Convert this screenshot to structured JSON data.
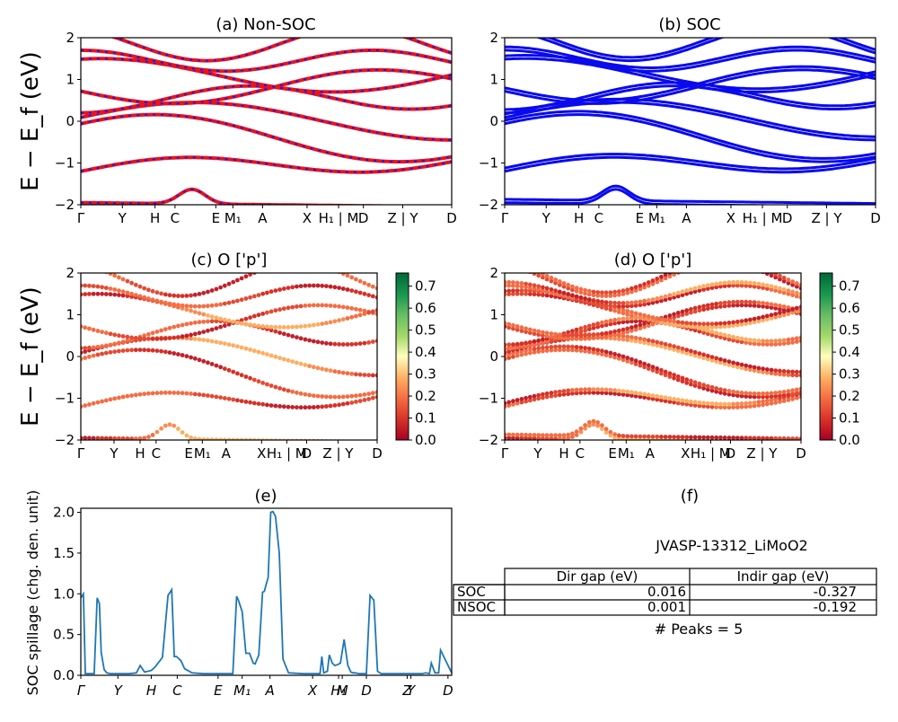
{
  "figure": {
    "ylabel_bands": "E − E_f (eV)",
    "colors": {
      "nonsoc_band": "#e8141c",
      "nonsoc_dash": "#1a1aee",
      "soc_band": "#0a0aee",
      "spillage_line": "#1f77b4"
    },
    "colormap": "RdYlGn"
  },
  "chart_data": [
    {
      "id": "a",
      "type": "line",
      "title": "(a) Non-SOC",
      "ylim": [
        -2,
        2
      ],
      "yticks": [
        "−2",
        "−1",
        "0",
        "1",
        "2"
      ],
      "kpath_labels": [
        "Γ",
        "Y",
        "H",
        "C",
        "E",
        "M₁",
        "A",
        "X",
        "H₁ | M",
        "D",
        "Z | Y",
        "D"
      ],
      "kpath_positions": [
        0,
        0.112,
        0.2,
        0.254,
        0.364,
        0.41,
        0.49,
        0.61,
        0.695,
        0.762,
        0.868,
        1.0
      ],
      "breaks": [
        0.683,
        0.868
      ]
    },
    {
      "id": "b",
      "type": "line",
      "title": "(b) SOC",
      "ylim": [
        -2,
        2
      ],
      "yticks": [
        "−2",
        "−1",
        "0",
        "1",
        "2"
      ],
      "kpath_labels": [
        "Γ",
        "Y",
        "H",
        "C",
        "E",
        "M₁",
        "A",
        "X",
        "H₁ | M",
        "D",
        "Z | Y",
        "D"
      ],
      "kpath_positions": [
        0,
        0.112,
        0.2,
        0.254,
        0.364,
        0.41,
        0.49,
        0.61,
        0.695,
        0.762,
        0.868,
        1.0
      ],
      "breaks": [
        0.683,
        0.868
      ]
    },
    {
      "id": "c",
      "type": "scatter",
      "title": "(c)  O ['p']",
      "ylim": [
        -2,
        2
      ],
      "yticks": [
        "−2",
        "−1",
        "0",
        "1",
        "2"
      ],
      "kpath_labels": [
        "Γ",
        "Y",
        "H",
        "C",
        "E",
        "M₁",
        "A",
        "X",
        "H₁ | M",
        "D",
        "Z | Y",
        "D"
      ],
      "colorbar": {
        "min": 0.0,
        "max": 0.76,
        "ticks": [
          "0.0",
          "0.1",
          "0.2",
          "0.3",
          "0.4",
          "0.5",
          "0.6",
          "0.7"
        ]
      }
    },
    {
      "id": "d",
      "type": "scatter",
      "title": "(d) O ['p']",
      "ylim": [
        -2,
        2
      ],
      "yticks": [
        "−2",
        "−1",
        "0",
        "1",
        "2"
      ],
      "kpath_labels": [
        "Γ",
        "Y",
        "H",
        "C",
        "E",
        "M₁",
        "A",
        "X",
        "H₁ | M",
        "D",
        "Z | Y",
        "D"
      ],
      "colorbar": {
        "min": 0.0,
        "max": 0.76,
        "ticks": [
          "0.0",
          "0.1",
          "0.2",
          "0.3",
          "0.4",
          "0.5",
          "0.6",
          "0.7"
        ]
      }
    },
    {
      "id": "e",
      "type": "line",
      "title": "(e)",
      "ylabel": "SOC spillage (chg. den. unit)",
      "ylim": [
        0,
        2.05
      ],
      "yticks": [
        "0.0",
        "0.5",
        "1.0",
        "1.5",
        "2.0"
      ],
      "xticks": [
        "Γ",
        "Y",
        "H",
        "C",
        "E",
        "M₁",
        "A",
        "X",
        "H₁",
        "M",
        "D",
        "Z",
        "Y",
        "D"
      ],
      "xtick_positions": [
        0,
        0.1,
        0.19,
        0.26,
        0.37,
        0.435,
        0.51,
        0.625,
        0.695,
        0.705,
        0.77,
        0.88,
        0.89,
        0.99
      ],
      "x": [
        0,
        0.007,
        0.012,
        0.02,
        0.028,
        0.036,
        0.044,
        0.05,
        0.055,
        0.063,
        0.07,
        0.08,
        0.1,
        0.13,
        0.15,
        0.16,
        0.172,
        0.19,
        0.2,
        0.22,
        0.235,
        0.245,
        0.252,
        0.258,
        0.27,
        0.28,
        0.3,
        0.33,
        0.35,
        0.37,
        0.41,
        0.42,
        0.425,
        0.435,
        0.445,
        0.455,
        0.465,
        0.47,
        0.48,
        0.49,
        0.495,
        0.5,
        0.505,
        0.512,
        0.518,
        0.525,
        0.535,
        0.545,
        0.56,
        0.6,
        0.63,
        0.645,
        0.65,
        0.655,
        0.665,
        0.67,
        0.678,
        0.685,
        0.692,
        0.7,
        0.71,
        0.72,
        0.728,
        0.735,
        0.74,
        0.75,
        0.77,
        0.78,
        0.79,
        0.8,
        0.81,
        0.83,
        0.87,
        0.9,
        0.92,
        0.93,
        0.94,
        0.945,
        0.955,
        0.965,
        0.97,
        1.0
      ],
      "values": [
        0.95,
        1.0,
        0.02,
        0.02,
        0.02,
        0.02,
        0.95,
        0.88,
        0.28,
        0.07,
        0.03,
        0.02,
        0.02,
        0.02,
        0.03,
        0.12,
        0.04,
        0.06,
        0.1,
        0.22,
        0.98,
        1.05,
        0.23,
        0.23,
        0.18,
        0.08,
        0.03,
        0.02,
        0.02,
        0.02,
        0.02,
        0.97,
        0.92,
        0.78,
        0.27,
        0.27,
        0.15,
        0.14,
        0.25,
        1.02,
        1.03,
        1.12,
        1.2,
        2.0,
        2.01,
        1.95,
        1.5,
        0.2,
        0.03,
        0.02,
        0.02,
        0.02,
        0.23,
        0.03,
        0.05,
        0.25,
        0.15,
        0.12,
        0.13,
        0.15,
        0.44,
        0.12,
        0.04,
        0.03,
        0.03,
        0.02,
        0.02,
        0.98,
        0.92,
        0.05,
        0.02,
        0.02,
        0.02,
        0.02,
        0.02,
        0.03,
        0.02,
        0.15,
        0.03,
        0.03,
        0.31,
        0.03
      ]
    },
    {
      "id": "f",
      "type": "table",
      "title": "(f)",
      "name": "JVASP-13312_LiMoO2",
      "columns": [
        "Dir gap (eV)",
        "Indir gap (eV)"
      ],
      "rows": [
        {
          "label": "SOC",
          "dir": "0.016",
          "indir": "-0.327"
        },
        {
          "label": "NSOC",
          "dir": "0.001",
          "indir": "-0.192"
        }
      ],
      "peaks": "# Peaks = 5"
    }
  ]
}
